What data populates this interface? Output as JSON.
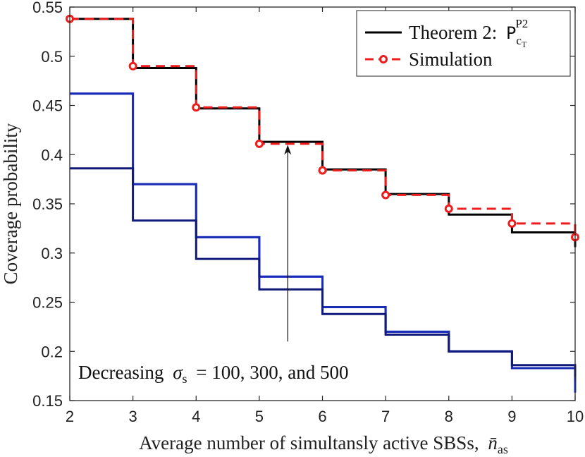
{
  "chart_data": {
    "type": "line",
    "title": "",
    "xlabel": "Average number of simultansly active SBSs,",
    "xlabel_symbol": "n̄",
    "xlabel_subscript": "as",
    "ylabel": "Coverage probability",
    "xlim": [
      2,
      10
    ],
    "ylim": [
      0.15,
      0.55
    ],
    "xticks": [
      "2",
      "3",
      "4",
      "5",
      "6",
      "7",
      "8",
      "9",
      "10"
    ],
    "yticks": [
      "0.15",
      "0.2",
      "0.25",
      "0.3",
      "0.35",
      "0.4",
      "0.45",
      "0.5",
      "0.55"
    ],
    "grid": false,
    "legend_position": "top-right",
    "series": [
      {
        "name": "Theorem 2:",
        "legend_symbol": "P",
        "legend_sub": "c",
        "legend_subsub": "T",
        "legend_sup": "P2",
        "style": "solid-black",
        "color": "#000000",
        "step_x": [
          2,
          3,
          4,
          5,
          6,
          7,
          8,
          9,
          10
        ],
        "step_values": [
          0.538,
          0.488,
          0.447,
          0.413,
          0.385,
          0.36,
          0.339,
          0.321,
          0.306
        ]
      },
      {
        "name": "Simulation",
        "style": "dashed-red-circles",
        "color": "#ee1c1c",
        "step_x": [
          2,
          3,
          4,
          5,
          6,
          7,
          8,
          9,
          10
        ],
        "step_values": [
          0.538,
          0.49,
          0.448,
          0.411,
          0.384,
          0.359,
          0.345,
          0.33,
          0.316
        ],
        "markers_x": [
          2,
          3,
          4,
          5,
          6,
          7,
          8,
          9,
          10
        ],
        "markers_y": [
          0.538,
          0.49,
          0.448,
          0.411,
          0.384,
          0.359,
          0.345,
          0.33,
          0.316
        ]
      },
      {
        "name": "sigma_s = 500",
        "style": "solid",
        "color": "#101a7a",
        "step_x": [
          2,
          3,
          4,
          5,
          6,
          7,
          8,
          9,
          10
        ],
        "step_values": [
          0.386,
          0.333,
          0.294,
          0.263,
          0.238,
          0.217,
          0.2,
          0.186,
          0.174
        ]
      },
      {
        "name": "sigma_s = 300",
        "style": "solid",
        "color": "#1a2cb4",
        "step_x": [
          2,
          3,
          4,
          5,
          6,
          7,
          8,
          9,
          10
        ],
        "step_values": [
          0.462,
          0.37,
          0.316,
          0.276,
          0.245,
          0.22,
          0.2,
          0.183,
          0.17
        ]
      },
      {
        "name": "sigma_s = 100",
        "style": "solid",
        "color": "#1f3cf0",
        "step_x": [
          2,
          3,
          4,
          5,
          6,
          7,
          8,
          9,
          10
        ],
        "step_values": [
          0.462,
          0.37,
          0.316,
          0.276,
          0.245,
          0.22,
          0.2,
          0.183,
          0.158
        ]
      }
    ],
    "annotations": [
      {
        "text_prefix": "Decreasing",
        "text_symbol": "σ",
        "text_sub": "s",
        "text_suffix": "= 100, 300, and 500"
      }
    ],
    "arrow": {
      "x": 5.45,
      "y_from": 0.21,
      "y_to": 0.41
    }
  }
}
